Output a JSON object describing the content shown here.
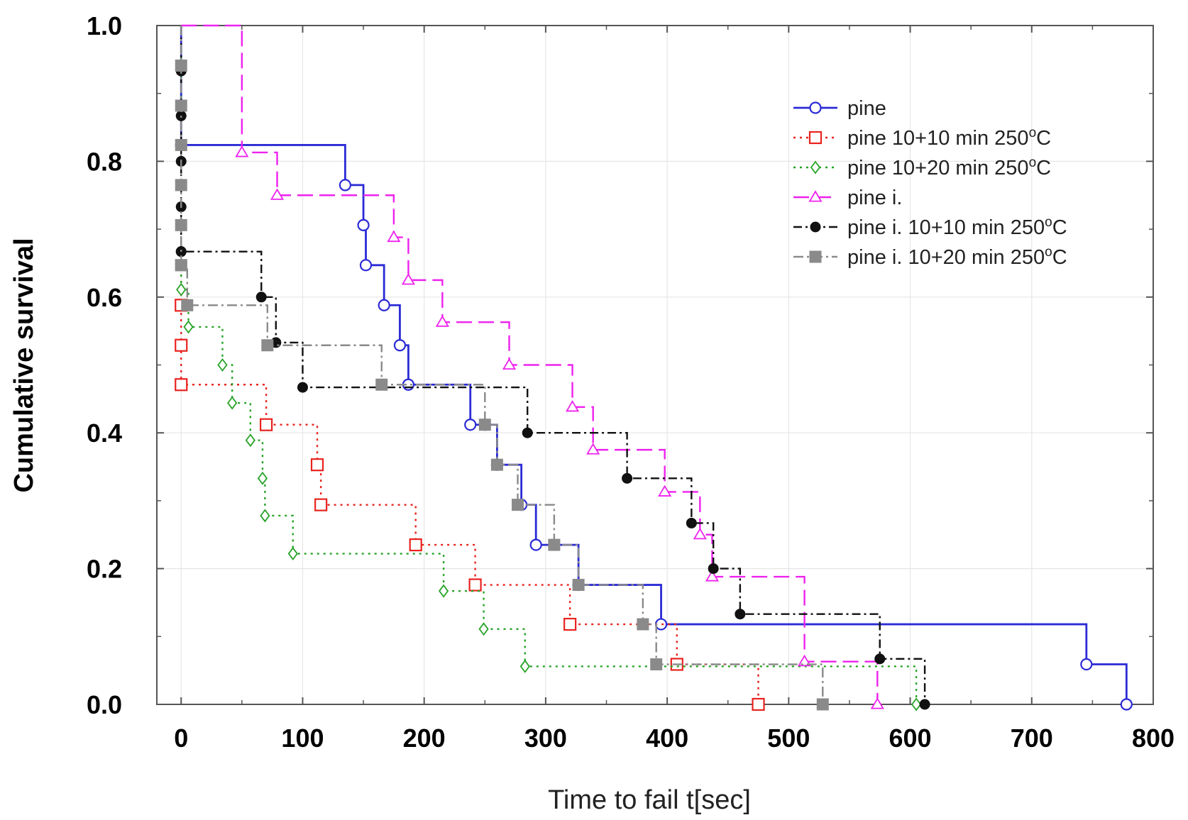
{
  "chart_data": {
    "type": "line",
    "step": true,
    "title": "",
    "xlabel": "Time to fail t[sec]",
    "ylabel": "Cumulative survival",
    "xlim": [
      -20,
      800
    ],
    "ylim": [
      0,
      1.0
    ],
    "x_ticks": [
      "0",
      "100",
      "200",
      "300",
      "400",
      "500",
      "600",
      "700",
      "800"
    ],
    "y_ticks": [
      "0.0",
      "0.2",
      "0.4",
      "0.6",
      "0.8",
      "1.0"
    ],
    "grid": true,
    "legend_position": "top-right",
    "series": [
      {
        "name": "pine",
        "legend_label": "pine",
        "legend_sup": "",
        "legend_suffix": "",
        "color": "#2b2bd6",
        "dash": "",
        "marker": "circle-open",
        "x": [
          0,
          135,
          150,
          152,
          167,
          180,
          187,
          238,
          250,
          260,
          280,
          292,
          327,
          395,
          745,
          778
        ],
        "y": [
          0.824,
          0.765,
          0.706,
          0.647,
          0.588,
          0.529,
          0.471,
          0.412,
          0.412,
          0.353,
          0.294,
          0.235,
          0.176,
          0.118,
          0.059,
          0.0
        ]
      },
      {
        "name": "pine 10+10 min 250°C",
        "legend_label": "pine 10+10 min 250",
        "legend_sup": "o",
        "legend_suffix": "C",
        "color": "#e8231f",
        "dash": "3,6",
        "marker": "square-open",
        "x": [
          0,
          0,
          0,
          70,
          112,
          115,
          193,
          242,
          320,
          408,
          475
        ],
        "y": [
          0.588,
          0.529,
          0.471,
          0.412,
          0.353,
          0.294,
          0.235,
          0.176,
          0.118,
          0.059,
          0.0
        ]
      },
      {
        "name": "pine 10+20 min 250°C",
        "legend_label": "pine 10+20 min 250",
        "legend_sup": "o",
        "legend_suffix": "C",
        "color": "#27a327",
        "dash": "3,6",
        "marker": "diamond-open",
        "x": [
          0,
          6,
          34,
          42,
          57,
          67,
          69,
          92,
          216,
          249,
          283,
          605
        ],
        "y": [
          0.611,
          0.556,
          0.5,
          0.444,
          0.389,
          0.333,
          0.278,
          0.222,
          0.167,
          0.111,
          0.056,
          0.0
        ]
      },
      {
        "name": "pine i.",
        "legend_label": "pine i.",
        "legend_sup": "",
        "legend_suffix": "",
        "color": "#ee22ee",
        "dash": "22,9",
        "marker": "triangle-open",
        "x": [
          50,
          79,
          175,
          187,
          215,
          270,
          322,
          339,
          398,
          427,
          437,
          513,
          573
        ],
        "y": [
          0.813,
          0.75,
          0.688,
          0.625,
          0.563,
          0.5,
          0.438,
          0.375,
          0.313,
          0.25,
          0.188,
          0.063,
          0.0
        ]
      },
      {
        "name": "pine i. 10+10 min 250°C",
        "legend_label": "pine i. 10+10 min 250",
        "legend_sup": "o",
        "legend_suffix": "C",
        "color": "#111111",
        "dash": "12,5,3,5",
        "marker": "circle-filled",
        "x": [
          0,
          0,
          0,
          0,
          0,
          0,
          66,
          78,
          100,
          285,
          367,
          420,
          438,
          460,
          575,
          612
        ],
        "y": [
          0.933,
          0.867,
          0.8,
          0.733,
          0.667,
          0.667,
          0.6,
          0.533,
          0.467,
          0.4,
          0.333,
          0.267,
          0.2,
          0.133,
          0.067,
          0.0
        ]
      },
      {
        "name": "pine i. 10+20 min 250°C",
        "legend_label": "pine i. 10+20 min 250",
        "legend_sup": "o",
        "legend_suffix": "C",
        "color": "#8a8a8a",
        "dash": "14,5,3,5",
        "marker": "square-filled",
        "x": [
          0,
          0,
          0,
          0,
          0,
          0,
          0,
          5,
          71,
          165,
          250,
          260,
          277,
          307,
          327,
          380,
          391,
          528
        ],
        "y": [
          0.941,
          0.882,
          0.824,
          0.765,
          0.706,
          0.647,
          0.647,
          0.588,
          0.529,
          0.471,
          0.412,
          0.353,
          0.294,
          0.235,
          0.176,
          0.118,
          0.059,
          0.0
        ]
      }
    ]
  }
}
